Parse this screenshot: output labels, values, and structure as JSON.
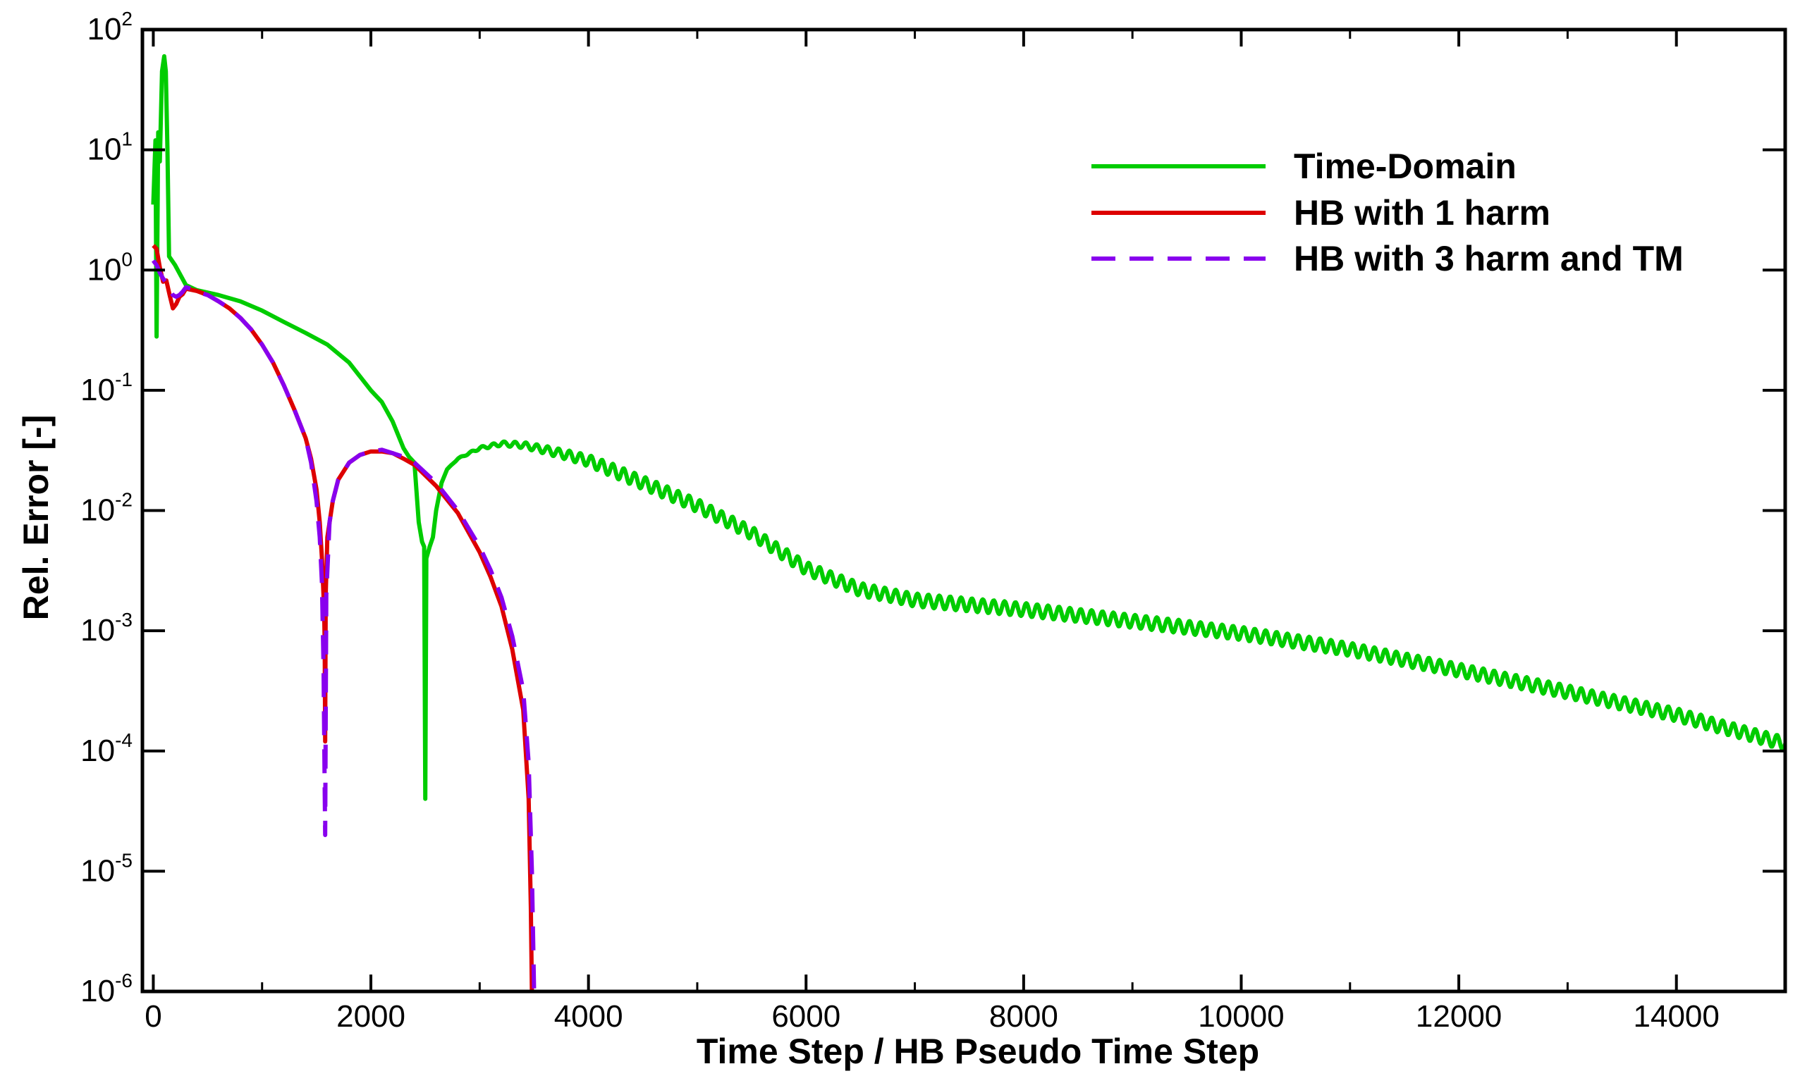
{
  "chart_data": {
    "type": "line",
    "xlabel": "Time Step / HB Pseudo Time Step",
    "ylabel": "Rel. Error [-]",
    "xlim": [
      -100,
      15000
    ],
    "ylim": [
      1e-06,
      100
    ],
    "yscale": "log",
    "grid": false,
    "legend_position": "top-right",
    "x_ticks": [
      {
        "value": 0,
        "label": "0"
      },
      {
        "value": 2000,
        "label": "2000"
      },
      {
        "value": 4000,
        "label": "4000"
      },
      {
        "value": 6000,
        "label": "6000"
      },
      {
        "value": 8000,
        "label": "8000"
      },
      {
        "value": 10000,
        "label": "10000"
      },
      {
        "value": 12000,
        "label": "12000"
      },
      {
        "value": 14000,
        "label": "14000"
      }
    ],
    "y_ticks": [
      {
        "value": 100,
        "base": "10",
        "exp": "2"
      },
      {
        "value": 10,
        "base": "10",
        "exp": "1"
      },
      {
        "value": 1,
        "base": "10",
        "exp": "0"
      },
      {
        "value": 0.1,
        "base": "10",
        "exp": "-1"
      },
      {
        "value": 0.01,
        "base": "10",
        "exp": "-2"
      },
      {
        "value": 0.001,
        "base": "10",
        "exp": "-3"
      },
      {
        "value": 0.0001,
        "base": "10",
        "exp": "-4"
      },
      {
        "value": 1e-05,
        "base": "10",
        "exp": "-5"
      },
      {
        "value": 1e-06,
        "base": "10",
        "exp": "-6"
      }
    ],
    "series": [
      {
        "name": "Time-Domain",
        "color": "#00cc00",
        "dash": "solid",
        "oscillation": {
          "start_x": 2700,
          "amplitude_decades": 0.055,
          "period": 100
        },
        "points": [
          [
            0,
            3.5
          ],
          [
            20,
            12
          ],
          [
            30,
            0.28
          ],
          [
            45,
            14
          ],
          [
            60,
            8
          ],
          [
            80,
            45
          ],
          [
            100,
            60
          ],
          [
            115,
            45
          ],
          [
            130,
            10
          ],
          [
            145,
            1.3
          ],
          [
            200,
            1.1
          ],
          [
            300,
            0.75
          ],
          [
            400,
            0.68
          ],
          [
            600,
            0.62
          ],
          [
            800,
            0.55
          ],
          [
            1000,
            0.46
          ],
          [
            1200,
            0.37
          ],
          [
            1400,
            0.3
          ],
          [
            1600,
            0.24
          ],
          [
            1800,
            0.17
          ],
          [
            2000,
            0.1
          ],
          [
            2100,
            0.08
          ],
          [
            2200,
            0.055
          ],
          [
            2300,
            0.033
          ],
          [
            2350,
            0.028
          ],
          [
            2400,
            0.025
          ],
          [
            2440,
            0.008
          ],
          [
            2470,
            0.0055
          ],
          [
            2490,
            0.005
          ],
          [
            2500,
            4e-05
          ],
          [
            2510,
            0.004
          ],
          [
            2540,
            0.005
          ],
          [
            2570,
            0.006
          ],
          [
            2600,
            0.01
          ],
          [
            2650,
            0.017
          ],
          [
            2700,
            0.022
          ],
          [
            2800,
            0.027
          ],
          [
            3000,
            0.033
          ],
          [
            3200,
            0.036
          ],
          [
            3400,
            0.035
          ],
          [
            3600,
            0.032
          ],
          [
            3800,
            0.029
          ],
          [
            4000,
            0.026
          ],
          [
            4200,
            0.022
          ],
          [
            4500,
            0.017
          ],
          [
            5000,
            0.011
          ],
          [
            5500,
            0.0065
          ],
          [
            6000,
            0.0033
          ],
          [
            6500,
            0.0022
          ],
          [
            7000,
            0.0018
          ],
          [
            8000,
            0.0015
          ],
          [
            9000,
            0.0012
          ],
          [
            10000,
            0.00095
          ],
          [
            11000,
            0.0007
          ],
          [
            12000,
            0.00047
          ],
          [
            13000,
            0.00031
          ],
          [
            14000,
            0.0002
          ],
          [
            15000,
            0.000115
          ]
        ]
      },
      {
        "name": "HB with 1 harm",
        "color": "#dd0000",
        "dash": "solid",
        "points": [
          [
            0,
            1.6
          ],
          [
            30,
            1.5
          ],
          [
            60,
            1.05
          ],
          [
            90,
            0.8
          ],
          [
            120,
            0.82
          ],
          [
            150,
            0.62
          ],
          [
            180,
            0.48
          ],
          [
            210,
            0.52
          ],
          [
            240,
            0.6
          ],
          [
            270,
            0.63
          ],
          [
            300,
            0.7
          ],
          [
            400,
            0.67
          ],
          [
            500,
            0.62
          ],
          [
            600,
            0.55
          ],
          [
            700,
            0.48
          ],
          [
            800,
            0.4
          ],
          [
            900,
            0.32
          ],
          [
            1000,
            0.24
          ],
          [
            1100,
            0.17
          ],
          [
            1200,
            0.11
          ],
          [
            1300,
            0.068
          ],
          [
            1400,
            0.04
          ],
          [
            1450,
            0.027
          ],
          [
            1500,
            0.015
          ],
          [
            1530,
            0.008
          ],
          [
            1550,
            0.004
          ],
          [
            1560,
            0.0025
          ],
          [
            1570,
            0.0015
          ],
          [
            1575,
            0.0008
          ],
          [
            1580,
            0.00012
          ],
          [
            1585,
            0.002
          ],
          [
            1600,
            0.006
          ],
          [
            1650,
            0.012
          ],
          [
            1700,
            0.018
          ],
          [
            1800,
            0.025
          ],
          [
            1900,
            0.029
          ],
          [
            2000,
            0.031
          ],
          [
            2100,
            0.031
          ],
          [
            2200,
            0.03
          ],
          [
            2300,
            0.027
          ],
          [
            2400,
            0.024
          ],
          [
            2600,
            0.016
          ],
          [
            2800,
            0.0095
          ],
          [
            3000,
            0.0045
          ],
          [
            3100,
            0.0028
          ],
          [
            3200,
            0.0016
          ],
          [
            3300,
            0.0007
          ],
          [
            3400,
            0.00022
          ],
          [
            3450,
            4e-05
          ],
          [
            3470,
            5e-06
          ],
          [
            3480,
            1e-06
          ]
        ]
      },
      {
        "name": "HB with 3 harm and TM",
        "color": "#8800ee",
        "dash": "dashed",
        "points": [
          [
            0,
            1.2
          ],
          [
            30,
            1.1
          ],
          [
            60,
            0.95
          ],
          [
            90,
            0.85
          ],
          [
            120,
            0.78
          ],
          [
            150,
            0.7
          ],
          [
            180,
            0.62
          ],
          [
            210,
            0.6
          ],
          [
            240,
            0.62
          ],
          [
            270,
            0.66
          ],
          [
            300,
            0.72
          ],
          [
            350,
            0.7
          ],
          [
            400,
            0.66
          ],
          [
            500,
            0.62
          ],
          [
            600,
            0.55
          ],
          [
            700,
            0.48
          ],
          [
            800,
            0.4
          ],
          [
            900,
            0.32
          ],
          [
            1000,
            0.24
          ],
          [
            1100,
            0.17
          ],
          [
            1200,
            0.11
          ],
          [
            1300,
            0.068
          ],
          [
            1400,
            0.04
          ],
          [
            1450,
            0.025
          ],
          [
            1500,
            0.012
          ],
          [
            1530,
            0.006
          ],
          [
            1550,
            0.0025
          ],
          [
            1565,
            0.0005
          ],
          [
            1575,
            5e-05
          ],
          [
            1580,
            2e-05
          ],
          [
            1590,
            0.002
          ],
          [
            1620,
            0.008
          ],
          [
            1650,
            0.012
          ],
          [
            1700,
            0.018
          ],
          [
            1800,
            0.025
          ],
          [
            1900,
            0.029
          ],
          [
            2000,
            0.031
          ],
          [
            2100,
            0.032
          ],
          [
            2200,
            0.03
          ],
          [
            2300,
            0.028
          ],
          [
            2400,
            0.025
          ],
          [
            2600,
            0.017
          ],
          [
            2800,
            0.01
          ],
          [
            3000,
            0.005
          ],
          [
            3100,
            0.0032
          ],
          [
            3200,
            0.0019
          ],
          [
            3300,
            0.0009
          ],
          [
            3400,
            0.00032
          ],
          [
            3450,
            8e-05
          ],
          [
            3480,
            1e-05
          ],
          [
            3500,
            1e-06
          ]
        ]
      }
    ]
  }
}
